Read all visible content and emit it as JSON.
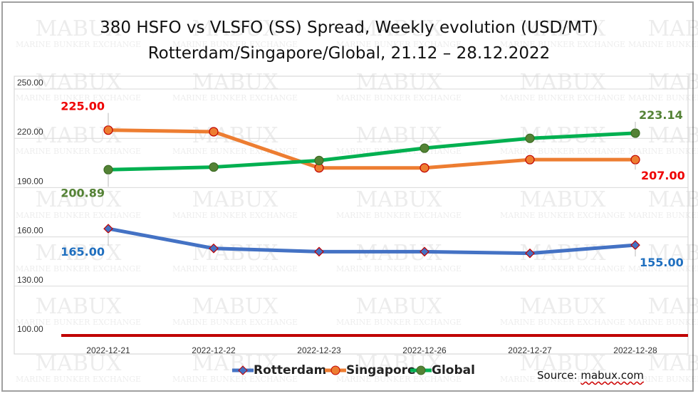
{
  "title_line1": "380 HSFO vs VLSFO (SS) Spread, Weekly evolution (USD/MT)",
  "title_line2": "Rotterdam/Singapore/Global, 21.12 – 28.12.2022",
  "source_prefix": "Source: ",
  "source_link": "mabux.com",
  "watermark": {
    "main": "MABUX",
    "sub": "MARINE BUNKER EXCHANGE"
  },
  "chart_data": {
    "type": "line",
    "title": "380 HSFO vs VLSFO (SS) Spread, Weekly evolution (USD/MT) Rotterdam/Singapore/Global, 21.12 – 28.12.2022",
    "categories": [
      "2022-12-21",
      "2022-12-22",
      "2022-12-23",
      "2022-12-26",
      "2022-12-27",
      "2022-12-28"
    ],
    "ylim": [
      100,
      250
    ],
    "yticks": [
      "100.00",
      "130.00",
      "160.00",
      "190.00",
      "220.00",
      "250.00"
    ],
    "grid": true,
    "legend_position": "bottom",
    "reference_line": {
      "value": 100,
      "color": "#c00000"
    },
    "series": [
      {
        "name": "Rotterdam",
        "color": "#4472c4",
        "marker": "diamond",
        "values": [
          165,
          153,
          151,
          151,
          150,
          155
        ],
        "labels": [
          {
            "index": 0,
            "text": "165.00"
          },
          {
            "index": 5,
            "text": "155.00"
          }
        ],
        "label_color": "#1f6fbf"
      },
      {
        "name": "Singapore",
        "color": "#ed7d31",
        "marker": "circle",
        "values": [
          225,
          224,
          202,
          202,
          207,
          207
        ],
        "labels": [
          {
            "index": 0,
            "text": "225.00"
          },
          {
            "index": 5,
            "text": "207.00"
          }
        ],
        "label_color": "#ee0000"
      },
      {
        "name": "Global",
        "color": "#00b050",
        "marker": "circle",
        "marker_color": "#548235",
        "values": [
          200.89,
          202.5,
          206.5,
          214,
          220,
          223.14
        ],
        "labels": [
          {
            "index": 0,
            "text": "200.89"
          },
          {
            "index": 5,
            "text": "223.14"
          }
        ],
        "label_color": "#548235"
      }
    ]
  }
}
